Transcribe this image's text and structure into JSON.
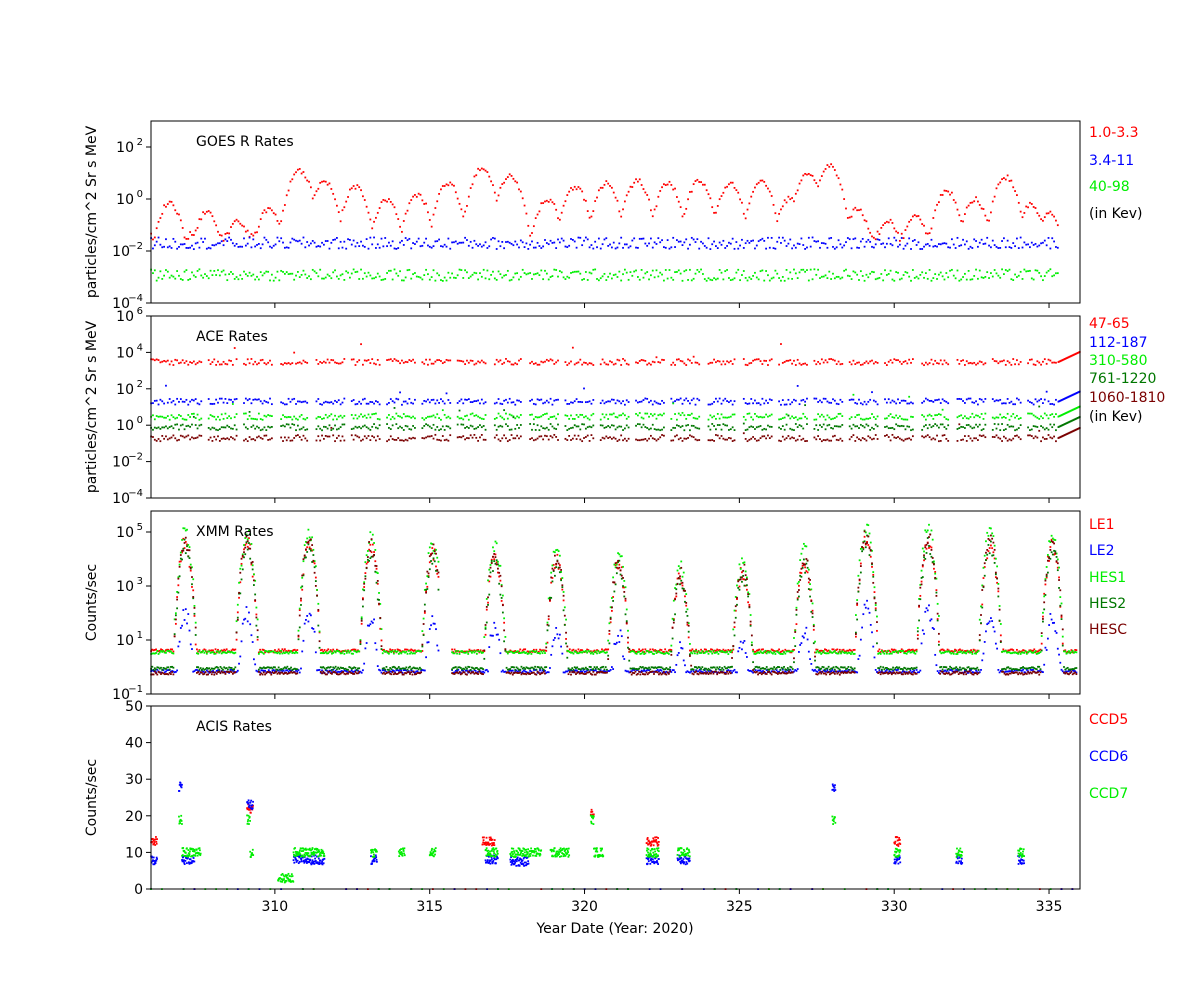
{
  "chart_data": [
    {
      "type": "scatter",
      "title": "GOES R Rates",
      "ylabel": "particles/cm^2 Sr s MeV",
      "yscale": "log",
      "ylim": [
        0.0001,
        1000
      ],
      "xlim": [
        306,
        336
      ],
      "yticks": [
        {
          "base": "10",
          "exp": "2",
          "value": 100
        },
        {
          "base": "10",
          "exp": "0",
          "value": 1
        },
        {
          "base": "10",
          "exp": "−2",
          "value": 0.01
        },
        {
          "base": "10",
          "exp": "−4",
          "value": 0.0001
        }
      ],
      "legend": [
        "1.0-3.3",
        "3.4-11",
        "40-98",
        "(in Kev)"
      ],
      "legend_colors": [
        "#ff0000",
        "#0000ff",
        "#00ee00",
        "#000000"
      ],
      "series": [
        {
          "name": "1.0-3.3",
          "color": "#ff0000",
          "baseline": 0.04,
          "peaks": [
            {
              "x": 306.6,
              "y": 0.7
            },
            {
              "x": 307.8,
              "y": 0.3
            },
            {
              "x": 308.8,
              "y": 0.15
            },
            {
              "x": 309.8,
              "y": 0.4
            },
            {
              "x": 310.8,
              "y": 12
            },
            {
              "x": 311.6,
              "y": 5
            },
            {
              "x": 312.6,
              "y": 3
            },
            {
              "x": 313.6,
              "y": 1
            },
            {
              "x": 314.6,
              "y": 1.5
            },
            {
              "x": 315.6,
              "y": 4
            },
            {
              "x": 316.7,
              "y": 15
            },
            {
              "x": 317.6,
              "y": 8
            },
            {
              "x": 318.8,
              "y": 1
            },
            {
              "x": 319.7,
              "y": 3
            },
            {
              "x": 320.7,
              "y": 4
            },
            {
              "x": 321.7,
              "y": 5
            },
            {
              "x": 322.7,
              "y": 4
            },
            {
              "x": 323.7,
              "y": 5
            },
            {
              "x": 324.7,
              "y": 4
            },
            {
              "x": 325.7,
              "y": 5
            },
            {
              "x": 326.6,
              "y": 1
            },
            {
              "x": 327.2,
              "y": 10
            },
            {
              "x": 327.9,
              "y": 20
            },
            {
              "x": 328.8,
              "y": 0.4
            },
            {
              "x": 329.8,
              "y": 0.15
            },
            {
              "x": 330.7,
              "y": 0.2
            },
            {
              "x": 331.7,
              "y": 2
            },
            {
              "x": 332.6,
              "y": 1
            },
            {
              "x": 333.6,
              "y": 7
            },
            {
              "x": 334.4,
              "y": 0.6
            },
            {
              "x": 335.0,
              "y": 0.3
            }
          ]
        },
        {
          "name": "3.4-11",
          "color": "#0000ff",
          "baseline": 0.02,
          "peaks": []
        },
        {
          "name": "40-98",
          "color": "#00ee00",
          "baseline": 0.0012,
          "peaks": []
        }
      ]
    },
    {
      "type": "scatter",
      "title": "ACE Rates",
      "ylabel": "particles/cm^2 Sr s MeV",
      "yscale": "log",
      "ylim": [
        0.0001,
        1000000
      ],
      "xlim": [
        306,
        336
      ],
      "yticks": [
        {
          "base": "10",
          "exp": "6",
          "value": 1000000
        },
        {
          "base": "10",
          "exp": "4",
          "value": 10000
        },
        {
          "base": "10",
          "exp": "2",
          "value": 100
        },
        {
          "base": "10",
          "exp": "0",
          "value": 1
        },
        {
          "base": "10",
          "exp": "−2",
          "value": 0.01
        },
        {
          "base": "10",
          "exp": "−4",
          "value": 0.0001
        }
      ],
      "legend": [
        "47-65",
        "112-187",
        "310-580",
        "761-1220",
        "1060-1810",
        "(in Kev)"
      ],
      "legend_colors": [
        "#ff0000",
        "#0000ff",
        "#00ee00",
        "#007700",
        "#7a0000",
        "#000000"
      ],
      "series": [
        {
          "name": "47-65",
          "color": "#ff0000",
          "baseline": 3000
        },
        {
          "name": "112-187",
          "color": "#0000ff",
          "baseline": 20
        },
        {
          "name": "310-580",
          "color": "#00ee00",
          "baseline": 3
        },
        {
          "name": "761-1220",
          "color": "#007700",
          "baseline": 0.8
        },
        {
          "name": "1060-1810",
          "color": "#7a0000",
          "baseline": 0.2
        }
      ]
    },
    {
      "type": "scatter",
      "title": "XMM Rates",
      "ylabel": "Counts/sec",
      "yscale": "log",
      "ylim": [
        0.1,
        600000
      ],
      "xlim": [
        306,
        336
      ],
      "yticks": [
        {
          "base": "10",
          "exp": "5",
          "value": 100000
        },
        {
          "base": "10",
          "exp": "3",
          "value": 1000
        },
        {
          "base": "10",
          "exp": "1",
          "value": 10
        },
        {
          "base": "10",
          "exp": "−1",
          "value": 0.1
        }
      ],
      "legend": [
        "LE1",
        "LE2",
        "HES1",
        "HES2",
        "HESC"
      ],
      "legend_colors": [
        "#ff0000",
        "#0000ff",
        "#00ee00",
        "#007700",
        "#7a0000"
      ],
      "perigees": [
        307.1,
        309.1,
        311.1,
        313.1,
        315.1,
        317.1,
        319.1,
        321.1,
        323.1,
        325.1,
        327.1,
        329.1,
        331.1,
        333.1,
        335.1
      ],
      "peak_heights": [
        100000,
        100000,
        100000,
        60000,
        40000,
        30000,
        20000,
        15000,
        5000,
        8000,
        20000,
        150000,
        130000,
        100000,
        80000
      ],
      "series": [
        {
          "name": "LE1",
          "color": "#ff0000",
          "baseline": 4
        },
        {
          "name": "LE2",
          "color": "#0000ff",
          "baseline": 0.7
        },
        {
          "name": "HES1",
          "color": "#00ee00",
          "baseline": 3.5
        },
        {
          "name": "HES2",
          "color": "#007700",
          "baseline": 0.9
        },
        {
          "name": "HESC",
          "color": "#7a0000",
          "baseline": 0.6
        }
      ]
    },
    {
      "type": "scatter",
      "title": "ACIS Rates",
      "ylabel": "Counts/sec",
      "yscale": "linear",
      "ylim": [
        0,
        50
      ],
      "xlim": [
        306,
        336
      ],
      "yticks": [
        {
          "label": "50",
          "value": 50
        },
        {
          "label": "40",
          "value": 40
        },
        {
          "label": "30",
          "value": 30
        },
        {
          "label": "20",
          "value": 20
        },
        {
          "label": "10",
          "value": 10
        },
        {
          "label": "0",
          "value": 0
        }
      ],
      "legend": [
        "CCD5",
        "CCD6",
        "CCD7"
      ],
      "legend_colors": [
        "#ff0000",
        "#0000ff",
        "#00ee00"
      ],
      "series": [
        {
          "name": "CCD5",
          "color": "#ff0000",
          "clusters": [
            {
              "x0": 306.0,
              "x1": 306.2,
              "y": 13
            },
            {
              "x0": 309.1,
              "x1": 309.3,
              "y": 22
            },
            {
              "x0": 316.7,
              "x1": 317.1,
              "y": 13
            },
            {
              "x0": 320.2,
              "x1": 320.3,
              "y": 21
            },
            {
              "x0": 322.0,
              "x1": 322.4,
              "y": 13
            },
            {
              "x0": 330.0,
              "x1": 330.2,
              "y": 13
            }
          ]
        },
        {
          "name": "CCD6",
          "color": "#0000ff",
          "clusters": [
            {
              "x0": 306.0,
              "x1": 306.2,
              "y": 8
            },
            {
              "x0": 306.9,
              "x1": 307.0,
              "y": 28
            },
            {
              "x0": 307.0,
              "x1": 307.4,
              "y": 8
            },
            {
              "x0": 309.1,
              "x1": 309.3,
              "y": 23
            },
            {
              "x0": 310.6,
              "x1": 311.6,
              "y": 8
            },
            {
              "x0": 313.1,
              "x1": 313.3,
              "y": 8
            },
            {
              "x0": 316.8,
              "x1": 317.2,
              "y": 8
            },
            {
              "x0": 317.6,
              "x1": 318.2,
              "y": 7.5
            },
            {
              "x0": 322.0,
              "x1": 322.4,
              "y": 8
            },
            {
              "x0": 323.0,
              "x1": 323.4,
              "y": 8
            },
            {
              "x0": 328.0,
              "x1": 328.1,
              "y": 28
            },
            {
              "x0": 330.0,
              "x1": 330.2,
              "y": 8
            },
            {
              "x0": 332.0,
              "x1": 332.2,
              "y": 8
            },
            {
              "x0": 334.0,
              "x1": 334.2,
              "y": 8
            }
          ]
        },
        {
          "name": "CCD7",
          "color": "#00ee00",
          "clusters": [
            {
              "x0": 306.9,
              "x1": 307.0,
              "y": 19
            },
            {
              "x0": 307.0,
              "x1": 307.6,
              "y": 10
            },
            {
              "x0": 309.1,
              "x1": 309.2,
              "y": 19
            },
            {
              "x0": 309.2,
              "x1": 309.3,
              "y": 10
            },
            {
              "x0": 310.1,
              "x1": 310.6,
              "y": 3
            },
            {
              "x0": 310.6,
              "x1": 311.6,
              "y": 10
            },
            {
              "x0": 313.1,
              "x1": 313.3,
              "y": 10
            },
            {
              "x0": 314.0,
              "x1": 314.2,
              "y": 10
            },
            {
              "x0": 315.0,
              "x1": 315.2,
              "y": 10
            },
            {
              "x0": 316.8,
              "x1": 317.2,
              "y": 10
            },
            {
              "x0": 317.6,
              "x1": 318.6,
              "y": 10
            },
            {
              "x0": 318.9,
              "x1": 319.5,
              "y": 10
            },
            {
              "x0": 320.2,
              "x1": 320.3,
              "y": 19
            },
            {
              "x0": 320.3,
              "x1": 320.6,
              "y": 10
            },
            {
              "x0": 322.0,
              "x1": 322.4,
              "y": 10
            },
            {
              "x0": 323.0,
              "x1": 323.4,
              "y": 10
            },
            {
              "x0": 328.0,
              "x1": 328.1,
              "y": 19
            },
            {
              "x0": 330.0,
              "x1": 330.2,
              "y": 10
            },
            {
              "x0": 332.0,
              "x1": 332.2,
              "y": 10
            },
            {
              "x0": 334.0,
              "x1": 334.2,
              "y": 10
            }
          ]
        }
      ]
    }
  ],
  "xaxis": {
    "label": "Year Date (Year: 2020)",
    "ticks": [
      {
        "label": "310",
        "value": 310
      },
      {
        "label": "315",
        "value": 315
      },
      {
        "label": "320",
        "value": 320
      },
      {
        "label": "325",
        "value": 325
      },
      {
        "label": "330",
        "value": 330
      },
      {
        "label": "335",
        "value": 335
      }
    ]
  }
}
